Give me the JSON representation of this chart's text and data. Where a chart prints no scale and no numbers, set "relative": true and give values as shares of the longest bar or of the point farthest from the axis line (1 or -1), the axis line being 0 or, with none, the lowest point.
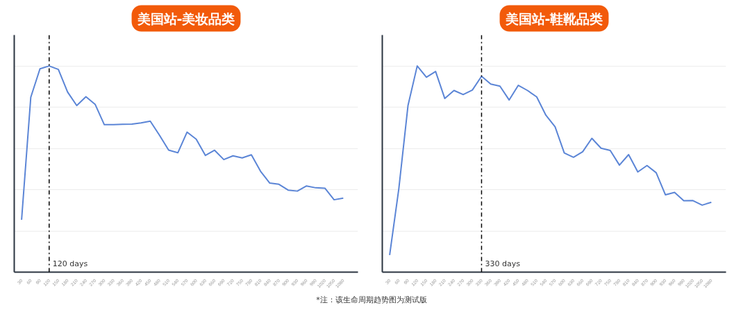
{
  "chart_data": [
    {
      "type": "line",
      "title": "美国站-美妆品类",
      "relative": true,
      "grid": "y",
      "marker": "none",
      "line_style": "solid",
      "categories": [
        "30",
        "60",
        "90",
        "120",
        "150",
        "180",
        "210",
        "240",
        "270",
        "300",
        "330",
        "360",
        "390",
        "420",
        "450",
        "480",
        "510",
        "540",
        "570",
        "600",
        "630",
        "660",
        "690",
        "720",
        "750",
        "780",
        "810",
        "840",
        "870",
        "900",
        "930",
        "960",
        "990",
        "1020",
        "1050",
        "1080"
      ],
      "series": [
        {
          "color": "#5b85d6",
          "values": [
            0.254,
            0.848,
            0.986,
            1,
            0.983,
            0.874,
            0.808,
            0.851,
            0.814,
            0.715,
            0.715,
            0.717,
            0.718,
            0.724,
            0.732,
            0.664,
            0.592,
            0.579,
            0.679,
            0.645,
            0.566,
            0.591,
            0.546,
            0.564,
            0.554,
            0.569,
            0.489,
            0.432,
            0.426,
            0.398,
            0.393,
            0.418,
            0.409,
            0.407,
            0.351,
            0.359
          ]
        }
      ],
      "ref_lines": [
        {
          "axis": "x",
          "value": "120",
          "label": "120 days",
          "color": "#000000",
          "line_style": "dashdot"
        }
      ],
      "annotations": [
        "*注：该生命周期趋势图为测试版"
      ]
    },
    {
      "type": "line",
      "title": "美国站-鞋靴品类",
      "relative": true,
      "grid": "y",
      "marker": "none",
      "line_style": "solid",
      "categories": [
        "30",
        "60",
        "90",
        "120",
        "150",
        "180",
        "210",
        "240",
        "270",
        "300",
        "330",
        "360",
        "390",
        "420",
        "450",
        "480",
        "510",
        "540",
        "570",
        "600",
        "630",
        "660",
        "690",
        "720",
        "750",
        "780",
        "810",
        "840",
        "870",
        "900",
        "930",
        "960",
        "990",
        "1020",
        "1050",
        "1080"
      ],
      "series": [
        {
          "color": "#5b85d6",
          "values": [
            0.083,
            0.405,
            0.809,
            1,
            0.945,
            0.973,
            0.842,
            0.881,
            0.861,
            0.883,
            0.95,
            0.912,
            0.902,
            0.835,
            0.906,
            0.881,
            0.85,
            0.761,
            0.705,
            0.578,
            0.557,
            0.584,
            0.649,
            0.601,
            0.59,
            0.519,
            0.57,
            0.486,
            0.517,
            0.482,
            0.375,
            0.387,
            0.346,
            0.347,
            0.325,
            0.339
          ]
        }
      ],
      "ref_lines": [
        {
          "axis": "x",
          "value": "330",
          "label": "330 days",
          "color": "#000000",
          "line_style": "dashdot"
        }
      ]
    }
  ]
}
